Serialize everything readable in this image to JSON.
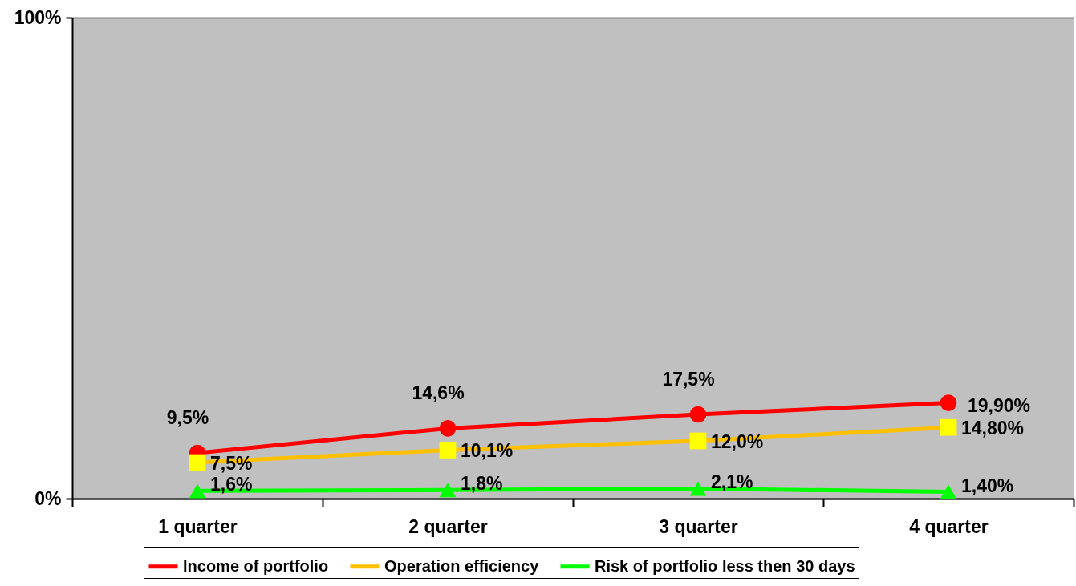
{
  "chart_data": {
    "type": "line",
    "categories": [
      "1 quarter",
      "2 quarter",
      "3 quarter",
      "4 quarter"
    ],
    "series": [
      {
        "name": "Income of portfolio",
        "color": "#ff0000",
        "marker": "circle",
        "values": [
          9.5,
          14.6,
          17.5,
          19.9
        ],
        "value_labels": [
          "9,5%",
          "14,6%",
          "17,5%",
          "19,90%"
        ]
      },
      {
        "name": "Operation efficiency",
        "color": "#ffc000",
        "colors": [
          "#ffff00",
          "#ffff00",
          "#ffff00",
          "#ffff00"
        ],
        "marker": "square",
        "values": [
          7.5,
          10.1,
          12.0,
          14.8
        ],
        "value_labels": [
          "7,5%",
          "10,1%",
          "12,0%",
          "14,80%"
        ]
      },
      {
        "name": "Risk of portfolio less then 30 days",
        "color": "#00ff00",
        "marker": "triangle",
        "values": [
          1.6,
          1.8,
          2.1,
          1.4
        ],
        "value_labels": [
          "1,6%",
          "1,8%",
          "2,1%",
          "1,40%"
        ]
      }
    ],
    "ylim": [
      0,
      100
    ],
    "yticks": [
      {
        "value": 0,
        "label": "0%"
      },
      {
        "value": 100,
        "label": "100%"
      }
    ],
    "grid": "y",
    "legend": "bottom",
    "line_style": "solid"
  }
}
